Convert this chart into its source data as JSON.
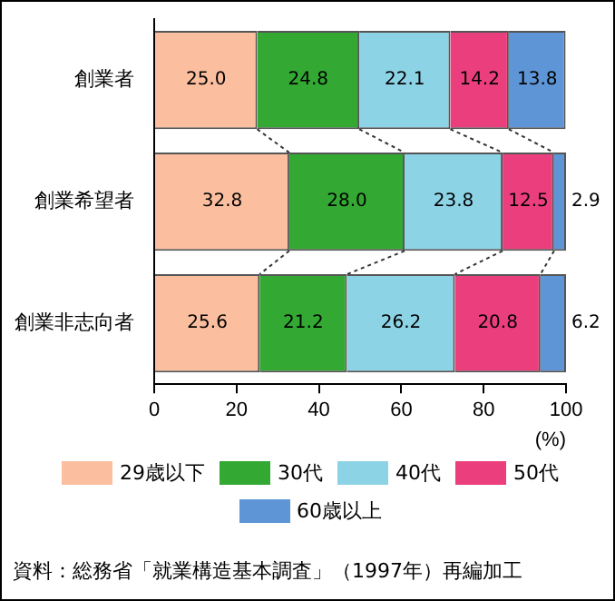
{
  "chart_data": {
    "type": "bar",
    "orientation": "horizontal",
    "stacked": true,
    "categories": [
      "創業者",
      "創業希望者",
      "創業非志向者"
    ],
    "series": [
      {
        "name": "29歳以下",
        "color": "#fbbf9f",
        "values": [
          25.0,
          32.8,
          25.6
        ],
        "value_labels": [
          "25.0",
          "32.8",
          "25.6"
        ]
      },
      {
        "name": "30代",
        "color": "#33a833",
        "values": [
          24.8,
          28.0,
          21.2
        ],
        "value_labels": [
          "24.8",
          "28.0",
          "21.2"
        ]
      },
      {
        "name": "40代",
        "color": "#8dd3e6",
        "values": [
          22.1,
          23.8,
          26.2
        ],
        "value_labels": [
          "22.1",
          "23.8",
          "26.2"
        ]
      },
      {
        "name": "50代",
        "color": "#ea3f7c",
        "values": [
          14.2,
          12.5,
          20.8
        ],
        "value_labels": [
          "14.2",
          "12.5",
          "20.8"
        ]
      },
      {
        "name": "60歳以上",
        "color": "#5e95d6",
        "values": [
          13.8,
          2.9,
          6.2
        ],
        "value_labels": [
          "13.8",
          "2.9",
          "6.2"
        ]
      }
    ],
    "xlim": [
      0,
      100
    ],
    "xticks": [
      0,
      20,
      40,
      60,
      80,
      100
    ],
    "xlabel": "(%)",
    "legend": "bottom",
    "grid": false,
    "annotations": [
      "資料：総務省「就業構造基本調査」（1997年）再編加工"
    ]
  }
}
